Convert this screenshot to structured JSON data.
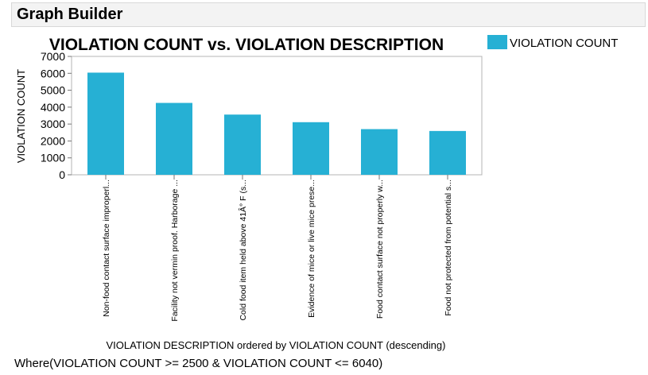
{
  "window": {
    "title": "Graph Builder"
  },
  "chart_data": {
    "type": "bar",
    "title": "VIOLATION COUNT vs. VIOLATION DESCRIPTION",
    "xlabel": "VIOLATION DESCRIPTION ordered by VIOLATION COUNT (descending)",
    "ylabel": "VIOLATION COUNT",
    "ylim": [
      0,
      7000
    ],
    "yticks": [
      0,
      1000,
      2000,
      3000,
      4000,
      5000,
      6000,
      7000
    ],
    "categories": [
      "Non-food contact surface improperl...",
      "Facility not vermin proof. Harborage ...",
      "Cold food item held above 41Â° F (s...",
      "Evidence of mice or live mice prese...",
      "Food contact surface not properly w...",
      "Food not protected from potential s..."
    ],
    "series": [
      {
        "name": "VIOLATION COUNT",
        "values": [
          6040,
          4250,
          3560,
          3110,
          2700,
          2590
        ],
        "color": "#26b0d4"
      }
    ],
    "legend": "top-right",
    "grid": false
  },
  "filter": {
    "text": "Where(VIOLATION COUNT >= 2500 & VIOLATION COUNT <= 6040)"
  }
}
